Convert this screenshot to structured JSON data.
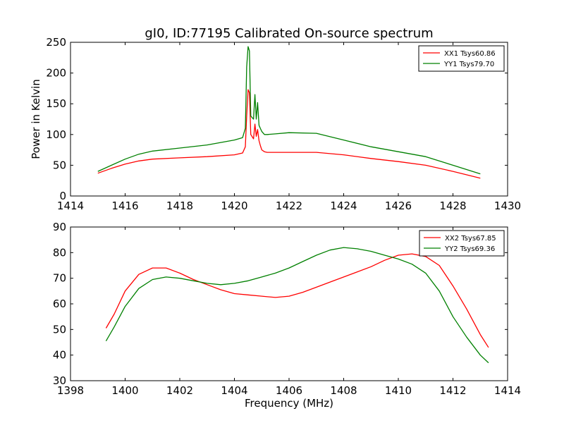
{
  "chart_data": [
    {
      "type": "line",
      "title": "gI0, ID:77195 Calibrated On-source spectrum",
      "xlabel": "",
      "ylabel": "Power in Kelvin",
      "xlim": [
        1414,
        1430
      ],
      "ylim": [
        0,
        250
      ],
      "xticks": [
        1414,
        1416,
        1418,
        1420,
        1422,
        1424,
        1426,
        1428,
        1430
      ],
      "yticks": [
        0,
        50,
        100,
        150,
        200,
        250
      ],
      "legend_position": "top-right",
      "series": [
        {
          "name": "XX1 Tsys60.86",
          "color": "#ff0000",
          "x": [
            1415.0,
            1415.5,
            1416.0,
            1416.5,
            1417.0,
            1418.0,
            1419.0,
            1420.0,
            1420.3,
            1420.4,
            1420.45,
            1420.5,
            1420.55,
            1420.6,
            1420.7,
            1420.75,
            1420.8,
            1420.85,
            1420.9,
            1420.95,
            1421.0,
            1421.1,
            1421.2,
            1421.5,
            1422.0,
            1423.0,
            1424.0,
            1425.0,
            1426.0,
            1427.0,
            1428.0,
            1429.0
          ],
          "y": [
            37,
            45,
            52,
            57,
            60,
            62,
            64,
            67,
            70,
            80,
            130,
            173,
            168,
            100,
            93,
            117,
            97,
            108,
            90,
            82,
            75,
            72,
            71,
            71,
            71,
            71,
            67,
            61,
            56,
            50,
            40,
            29
          ]
        },
        {
          "name": "YY1 Tsys79.70",
          "color": "#008000",
          "x": [
            1415.0,
            1415.5,
            1416.0,
            1416.5,
            1417.0,
            1418.0,
            1419.0,
            1420.0,
            1420.3,
            1420.4,
            1420.45,
            1420.5,
            1420.55,
            1420.6,
            1420.7,
            1420.75,
            1420.8,
            1420.85,
            1420.9,
            1420.95,
            1421.0,
            1421.1,
            1421.2,
            1421.5,
            1422.0,
            1423.0,
            1424.0,
            1425.0,
            1426.0,
            1427.0,
            1428.0,
            1429.0
          ],
          "y": [
            40,
            50,
            60,
            68,
            73,
            78,
            83,
            91,
            95,
            110,
            210,
            243,
            236,
            130,
            125,
            165,
            125,
            152,
            115,
            110,
            105,
            100,
            100,
            101,
            103,
            102,
            91,
            80,
            72,
            64,
            50,
            36
          ]
        }
      ]
    },
    {
      "type": "line",
      "title": "",
      "xlabel": "Frequency (MHz)",
      "ylabel": "",
      "xlim": [
        1398,
        1414
      ],
      "ylim": [
        30,
        90
      ],
      "xticks": [
        1398,
        1400,
        1402,
        1404,
        1406,
        1408,
        1410,
        1412,
        1414
      ],
      "yticks": [
        30,
        40,
        50,
        60,
        70,
        80,
        90
      ],
      "legend_position": "top-right",
      "series": [
        {
          "name": "XX2 Tsys67.85",
          "color": "#ff0000",
          "x": [
            1399.3,
            1399.6,
            1400.0,
            1400.5,
            1401.0,
            1401.5,
            1402.0,
            1402.5,
            1403.0,
            1403.5,
            1404.0,
            1404.5,
            1405.0,
            1405.5,
            1406.0,
            1406.5,
            1407.0,
            1407.5,
            1408.0,
            1408.5,
            1409.0,
            1409.5,
            1410.0,
            1410.5,
            1411.0,
            1411.5,
            1412.0,
            1412.5,
            1413.0,
            1413.3
          ],
          "y": [
            50.5,
            56,
            65,
            71.5,
            74,
            74,
            72,
            69.5,
            67.5,
            65.5,
            64,
            63.5,
            63,
            62.5,
            63,
            64.5,
            66.5,
            68.5,
            70.5,
            72.5,
            74.5,
            77,
            79,
            79.5,
            78.5,
            75,
            67,
            58,
            48,
            43
          ]
        },
        {
          "name": "YY2 Tsys69.36",
          "color": "#008000",
          "x": [
            1399.3,
            1399.6,
            1400.0,
            1400.5,
            1401.0,
            1401.5,
            1402.0,
            1402.5,
            1403.0,
            1403.5,
            1404.0,
            1404.5,
            1405.0,
            1405.5,
            1406.0,
            1406.5,
            1407.0,
            1407.5,
            1408.0,
            1408.5,
            1409.0,
            1409.5,
            1410.0,
            1410.5,
            1411.0,
            1411.5,
            1412.0,
            1412.5,
            1413.0,
            1413.3
          ],
          "y": [
            45.5,
            51,
            59,
            66,
            69.5,
            70.5,
            70,
            69,
            68,
            67.5,
            68,
            69,
            70.5,
            72,
            74,
            76.5,
            79,
            81,
            82,
            81.5,
            80.5,
            79,
            77.5,
            75.5,
            72,
            65,
            55,
            47,
            40,
            37
          ]
        }
      ]
    }
  ]
}
